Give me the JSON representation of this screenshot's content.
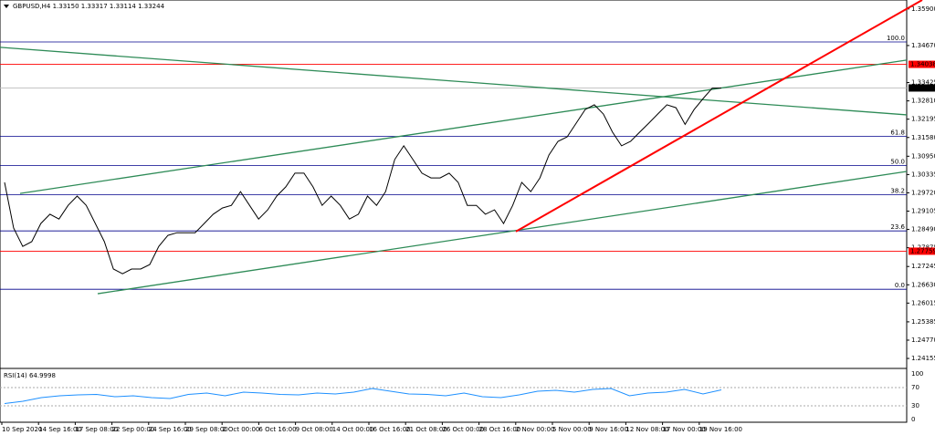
{
  "chart_data": {
    "type": "line",
    "title": "GBPUSD,H4  1.33150 1.33317 1.33114 1.33244",
    "ylim": [
      1.2385,
      1.362
    ],
    "yticks": [
      {
        "value": 1.359,
        "label": "1.35900"
      },
      {
        "value": 1.3467,
        "label": "1.34670"
      },
      1.33425,
      {
        "value": 1.3281,
        "label": "1.32810"
      },
      1.32195,
      {
        "value": 1.3158,
        "label": "1.31580"
      },
      {
        "value": 1.3095,
        "label": "1.30950"
      },
      1.30335,
      {
        "value": 1.2972,
        "label": "1.29720"
      },
      1.29105,
      {
        "value": 1.2849,
        "label": "1.28490"
      },
      1.27875,
      1.27245,
      {
        "value": 1.2663,
        "label": "1.26630"
      },
      1.26015,
      1.25385,
      {
        "value": 1.2477,
        "label": "1.24770"
      },
      1.24155
    ],
    "xticks": [
      "10 Sep 2020",
      "14 Sep 16:00",
      "17 Sep 08:00",
      "22 Sep 00:00",
      "24 Sep 16:00",
      "29 Sep 08:00",
      "2 Oct 00:00",
      "6 Oct 16:00",
      "9 Oct 08:00",
      "14 Oct 00:00",
      "16 Oct 16:00",
      "21 Oct 08:00",
      "26 Oct 00:00",
      "28 Oct 16:00",
      "2 Nov 00:00",
      "5 Nov 00:00",
      "9 Nov 16:00",
      "12 Nov 08:00",
      "17 Nov 00:00",
      "19 Nov 16:00"
    ],
    "series": [
      {
        "name": "GBPUSD",
        "color": "#000000",
        "values": [
          1.3007,
          1.2854,
          1.2792,
          1.2808,
          1.2869,
          1.29,
          1.2884,
          1.293,
          1.2961,
          1.293,
          1.2869,
          1.2808,
          1.2716,
          1.27,
          1.2716,
          1.2716,
          1.2731,
          1.2792,
          1.2829,
          1.2838,
          1.2838,
          1.2838,
          1.2869,
          1.29,
          1.2921,
          1.293,
          1.2976,
          1.293,
          1.2884,
          1.2915,
          1.2961,
          1.2992,
          1.3038,
          1.3038,
          1.2992,
          1.293,
          1.2961,
          1.293,
          1.2884,
          1.29,
          1.2961,
          1.293,
          1.2976,
          1.3084,
          1.313,
          1.3084,
          1.3038,
          1.3022,
          1.3022,
          1.3038,
          1.3007,
          1.293,
          1.293,
          1.29,
          1.2915,
          1.2869,
          1.293,
          1.3007,
          1.2976,
          1.3022,
          1.3099,
          1.3145,
          1.316,
          1.3206,
          1.3252,
          1.3268,
          1.3237,
          1.3176,
          1.313,
          1.3145,
          1.3176,
          1.3206,
          1.3237,
          1.3268,
          1.3258,
          1.3202,
          1.3252,
          1.3289,
          1.3324,
          1.33244
        ]
      }
    ],
    "levels": [
      {
        "value": 1.34038,
        "color": "#ff0000"
      },
      {
        "value": 1.33244,
        "color": "#000000"
      },
      {
        "value": 1.27759,
        "color": "#ff0000"
      }
    ],
    "fib_range": [
      1.2648,
      1.3479
    ],
    "fib_levels": [
      {
        "value": 100,
        "label": "100.0"
      },
      {
        "value": 61.8,
        "label": "61.8"
      },
      {
        "value": 50,
        "label": "50.0"
      },
      {
        "value": 38.2,
        "label": "38.2"
      },
      {
        "value": 23.6,
        "label": "23.6"
      },
      {
        "value": 0,
        "label": "0.0"
      }
    ],
    "trendlines": [
      {
        "color": "#2e8b57",
        "values": [
          1.3461,
          1.3234
        ]
      },
      {
        "color": "#2e8b57",
        "values": [
          1.297,
          1.3418
        ]
      },
      {
        "color": "#2e8b57",
        "values": [
          1.2633,
          1.3044
        ]
      },
      {
        "color": "#ff0000",
        "values": [
          1.2842,
          1.362
        ]
      }
    ],
    "rsi": {
      "title": "RSI(14) 64.9998",
      "color": "#1e90ff",
      "ylim": [
        0,
        100
      ],
      "yticks": [
        100,
        70,
        30,
        0
      ],
      "values": [
        35,
        40,
        48,
        52,
        54,
        55,
        50,
        52,
        48,
        46,
        55,
        58,
        52,
        60,
        58,
        55,
        54,
        58,
        56,
        60,
        68,
        62,
        56,
        55,
        52,
        58,
        50,
        48,
        54,
        62,
        64,
        60,
        66,
        68,
        52,
        58,
        60,
        66,
        56,
        64.9998
      ]
    }
  }
}
